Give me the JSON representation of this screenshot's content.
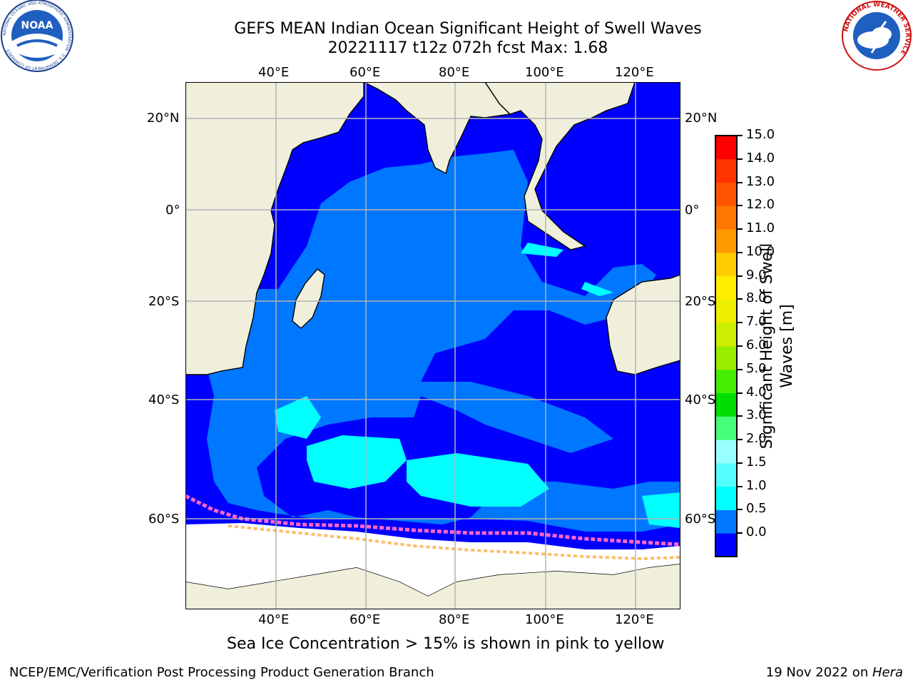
{
  "title_line1": "GEFS MEAN Indian Ocean Significant Height of Swell Waves",
  "title_line2": "20221117 t12z 072h fcst   Max: 1.68",
  "longitude_labels": [
    "40°E",
    "60°E",
    "80°E",
    "100°E",
    "120°E"
  ],
  "latitude_labels": [
    "20°N",
    "0°",
    "20°S",
    "40°S",
    "60°S"
  ],
  "colorbar": {
    "label": "Significant Height of Swell Waves [m]",
    "label_lines": [
      "Significant Height of Swell",
      "Waves [m]"
    ],
    "ticks": [
      "15.0",
      "14.0",
      "13.0",
      "12.0",
      "11.0",
      "10.0",
      "9.0",
      "8.0",
      "7.0",
      "6.0",
      "5.0",
      "4.0",
      "3.0",
      "2.0",
      "1.5",
      "1.0",
      "0.5",
      "0.0"
    ],
    "colors": [
      "#0000ff",
      "#0077ff",
      "#00ffff",
      "#55ffff",
      "#99ffff",
      "#44ff77",
      "#00dd00",
      "#44ee00",
      "#99ee00",
      "#ccee00",
      "#eeee00",
      "#ffee00",
      "#ffcc00",
      "#ff9900",
      "#ff7700",
      "#ff5500",
      "#ff3300",
      "#ff0000"
    ]
  },
  "caption": "Sea Ice Concentration > 15% is shown in pink to yellow",
  "footer_left": "NCEP/EMC/Verification Post Processing Product Generation Branch",
  "footer_right_date": "19 Nov 2022 on ",
  "footer_right_host": "Hera",
  "noaa_logo_text": "NOAA",
  "noaa_ring_text": "NATIONAL OCEANIC AND ATMOSPHERIC ADMINISTRATION · U.S. DEPARTMENT OF COMMERCE",
  "nws_ring_text": "NATIONAL WEATHER SERVICE"
}
